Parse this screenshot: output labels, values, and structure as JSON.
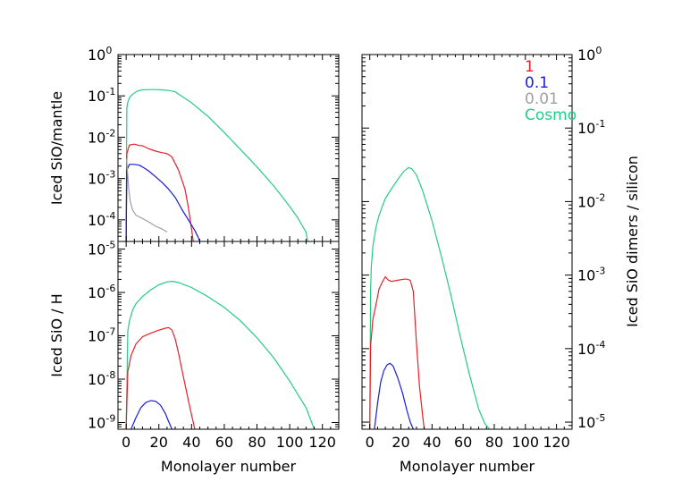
{
  "colors": {
    "axes": "#000000",
    "series_1": "#e8202a",
    "series_0.1": "#1a1ae0",
    "series_0.01": "#a0a0a0",
    "series_cosmo": "#22cc88"
  },
  "chart_data": [
    {
      "panel": "top-left",
      "type": "line",
      "xlabel": "",
      "ylabel": "Iced SiO/mantle",
      "xlim": [
        -5,
        130
      ],
      "ylim": [
        3e-05,
        1
      ],
      "yscale": "log",
      "xticks": [
        0,
        20,
        40,
        60,
        80,
        100,
        120
      ],
      "yticks": [
        {
          "value": 0.0001,
          "base": "10",
          "exp": "-4"
        },
        {
          "value": 0.001,
          "base": "10",
          "exp": "-3"
        },
        {
          "value": 0.01,
          "base": "10",
          "exp": "-2"
        },
        {
          "value": 0.1,
          "base": "10",
          "exp": "-1"
        },
        {
          "value": 1,
          "base": "10",
          "exp": "0"
        }
      ],
      "series": [
        {
          "name": "Cosmo",
          "color_key": "series_cosmo",
          "x": [
            0,
            0.4,
            1,
            2,
            3,
            4,
            6,
            8,
            10,
            14,
            18,
            22,
            26,
            30,
            40,
            50,
            60,
            70,
            80,
            90,
            100,
            105,
            110,
            111
          ],
          "y": [
            3e-05,
            0.05,
            0.07,
            0.09,
            0.1,
            0.11,
            0.125,
            0.135,
            0.14,
            0.142,
            0.142,
            0.14,
            0.135,
            0.125,
            0.068,
            0.032,
            0.013,
            0.005,
            0.0019,
            0.00068,
            0.00021,
            0.00011,
            5e-05,
            3e-05
          ]
        },
        {
          "name": "1",
          "color_key": "series_1",
          "x": [
            0,
            0.4,
            2,
            5,
            8,
            10,
            14,
            18,
            22,
            24,
            26,
            28,
            32,
            36,
            38,
            40,
            41
          ],
          "y": [
            3e-05,
            0.004,
            0.0065,
            0.0068,
            0.0063,
            0.0062,
            0.0052,
            0.0046,
            0.0042,
            0.0041,
            0.0038,
            0.0033,
            0.0016,
            0.00055,
            0.0002,
            6e-05,
            3e-05
          ]
        },
        {
          "name": "0.1",
          "color_key": "series_0.1",
          "x": [
            0,
            0.4,
            2,
            5,
            8,
            10,
            12,
            14,
            18,
            22,
            26,
            30,
            34,
            38,
            42,
            44,
            45
          ],
          "y": [
            3e-05,
            0.0016,
            0.0022,
            0.0022,
            0.0021,
            0.0019,
            0.0017,
            0.0015,
            0.0011,
            0.0008,
            0.00055,
            0.00035,
            0.00018,
            0.0001,
            5.5e-05,
            3.8e-05,
            3e-05
          ]
        },
        {
          "name": "0.01",
          "color_key": "series_0.01",
          "x": [
            0.3,
            0.8,
            1.5,
            2.5,
            4,
            6,
            8,
            10,
            14,
            18,
            22,
            25
          ],
          "y": [
            0.003,
            0.0015,
            0.0006,
            0.00028,
            0.00017,
            0.00013,
            0.000118,
            0.000108,
            8.8e-05,
            7e-05,
            6e-05,
            5.1e-05
          ]
        }
      ]
    },
    {
      "panel": "bottom-left",
      "type": "line",
      "xlabel": "Monolayer number",
      "ylabel": "Iced SiO / H",
      "xlim": [
        -5,
        130
      ],
      "ylim": [
        7e-10,
        1.5e-05
      ],
      "yscale": "log",
      "xticks": [
        0,
        20,
        40,
        60,
        80,
        100,
        120
      ],
      "yticks": [
        {
          "value": 1e-09,
          "base": "10",
          "exp": "-9"
        },
        {
          "value": 1e-08,
          "base": "10",
          "exp": "-8"
        },
        {
          "value": 1e-07,
          "base": "10",
          "exp": "-7"
        },
        {
          "value": 1e-06,
          "base": "10",
          "exp": "-6"
        },
        {
          "value": 1e-05,
          "base": "10",
          "exp": "-5"
        }
      ],
      "series": [
        {
          "name": "Cosmo",
          "color_key": "series_cosmo",
          "x": [
            0,
            1,
            2,
            4,
            6,
            10,
            15,
            20,
            25,
            28,
            32,
            40,
            50,
            60,
            70,
            80,
            90,
            100,
            110,
            115
          ],
          "y": [
            7e-10,
            1.3e-07,
            2.2e-07,
            4e-07,
            5.5e-07,
            8e-07,
            1.15e-06,
            1.5e-06,
            1.75e-06,
            1.8e-06,
            1.7e-06,
            1.3e-06,
            8e-07,
            4.5e-07,
            2.2e-07,
            9e-08,
            3.2e-08,
            9e-09,
            2.2e-09,
            7e-10
          ]
        },
        {
          "name": "1",
          "color_key": "series_1",
          "x": [
            0,
            1,
            3,
            6,
            10,
            15,
            20,
            24,
            26,
            28,
            30,
            32,
            34,
            37,
            40,
            42
          ],
          "y": [
            7e-10,
            1.5e-08,
            3.5e-08,
            6.5e-08,
            9.5e-08,
            1.15e-07,
            1.35e-07,
            1.5e-07,
            1.55e-07,
            1.35e-07,
            8.5e-08,
            4e-08,
            1.7e-08,
            5e-09,
            1.5e-09,
            7e-10
          ]
        },
        {
          "name": "0.1",
          "color_key": "series_0.1",
          "x": [
            3,
            6,
            9,
            12,
            15,
            18,
            21,
            24,
            26,
            28
          ],
          "y": [
            7e-10,
            1.3e-09,
            2.2e-09,
            2.9e-09,
            3.2e-09,
            3.1e-09,
            2.5e-09,
            1.6e-09,
            1.05e-09,
            7e-10
          ]
        }
      ]
    },
    {
      "panel": "right",
      "type": "line",
      "xlabel": "Monolayer number",
      "ylabel": "Iced SiO dimers / silicon",
      "xlim": [
        -5,
        130
      ],
      "ylim": [
        8e-06,
        1
      ],
      "yscale": "log",
      "xticks": [
        0,
        20,
        40,
        60,
        80,
        100,
        120
      ],
      "yticks": [
        {
          "value": 1e-05,
          "base": "10",
          "exp": "-5"
        },
        {
          "value": 0.0001,
          "base": "10",
          "exp": "-4"
        },
        {
          "value": 0.001,
          "base": "10",
          "exp": "-3"
        },
        {
          "value": 0.01,
          "base": "10",
          "exp": "-2"
        },
        {
          "value": 0.1,
          "base": "10",
          "exp": "-1"
        },
        {
          "value": 1,
          "base": "10",
          "exp": "0"
        }
      ],
      "legend": {
        "position": "top-right",
        "entries": [
          {
            "label": "1",
            "color_key": "series_1"
          },
          {
            "label": "0.1",
            "color_key": "series_0.1"
          },
          {
            "label": "0.01",
            "color_key": "series_0.01"
          },
          {
            "label": "Cosmo",
            "color_key": "series_cosmo"
          }
        ]
      },
      "series": [
        {
          "name": "Cosmo",
          "color_key": "series_cosmo",
          "x": [
            0,
            0.5,
            1,
            2,
            4,
            6,
            8,
            10,
            14,
            18,
            22,
            25,
            27,
            30,
            34,
            40,
            46,
            52,
            58,
            64,
            70,
            74,
            77
          ],
          "y": [
            8e-06,
            0.0006,
            0.0013,
            0.0025,
            0.0045,
            0.0065,
            0.0085,
            0.011,
            0.015,
            0.02,
            0.026,
            0.029,
            0.028,
            0.023,
            0.014,
            0.0055,
            0.0018,
            0.00055,
            0.00015,
            4.5e-05,
            1.5e-05,
            9.5e-06,
            8e-06
          ]
        },
        {
          "name": "1",
          "color_key": "series_1",
          "x": [
            0,
            0.5,
            2,
            4,
            6,
            8,
            10,
            12,
            14,
            18,
            22,
            24,
            26,
            28,
            30,
            32,
            34,
            35
          ],
          "y": [
            8e-06,
            0.00011,
            0.00025,
            0.0004,
            0.00065,
            0.0008,
            0.00095,
            0.00085,
            0.00082,
            0.00085,
            0.00088,
            0.00088,
            0.00085,
            0.0006,
            0.00012,
            3e-05,
            1.2e-05,
            8e-06
          ]
        },
        {
          "name": "0.1",
          "color_key": "series_0.1",
          "x": [
            3,
            5,
            7,
            9,
            11,
            13,
            15,
            18,
            21,
            24,
            26,
            28
          ],
          "y": [
            8e-06,
            1.8e-05,
            3.5e-05,
            5e-05,
            6e-05,
            6.3e-05,
            5.8e-05,
            4e-05,
            2.5e-05,
            1.4e-05,
            1e-05,
            8e-06
          ]
        }
      ]
    }
  ]
}
